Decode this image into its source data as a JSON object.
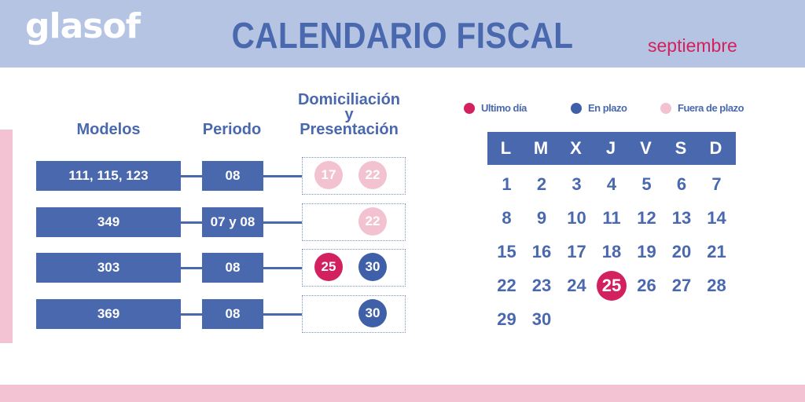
{
  "header": {
    "logo": "glasof",
    "title": "CALENDARIO FISCAL",
    "month": "septiembre"
  },
  "columns": {
    "modelos": "Modelos",
    "periodo": "Periodo",
    "domiciliacion": [
      "Domiciliación",
      "y",
      "Presentación"
    ]
  },
  "rows": [
    {
      "modelos": "111, 115, 123",
      "periodo": "08",
      "dates": [
        {
          "day": "17",
          "status": "fuera"
        },
        {
          "day": "22",
          "status": "fuera"
        }
      ]
    },
    {
      "modelos": "349",
      "periodo": "07 y 08",
      "dates": [
        {
          "day": "22",
          "status": "fuera"
        }
      ]
    },
    {
      "modelos": "303",
      "periodo": "08",
      "dates": [
        {
          "day": "25",
          "status": "ultimo"
        },
        {
          "day": "30",
          "status": "plazo"
        }
      ]
    },
    {
      "modelos": "369",
      "periodo": "08",
      "dates": [
        {
          "day": "30",
          "status": "plazo"
        }
      ]
    }
  ],
  "legend": [
    {
      "label": "Ultimo día",
      "color": "#d3215f"
    },
    {
      "label": "En plazo",
      "color": "#3f5fa8"
    },
    {
      "label": "Fuera de plazo",
      "color": "#f2c2d1"
    }
  ],
  "calendar": {
    "weekdays": [
      "L",
      "M",
      "X",
      "J",
      "V",
      "S",
      "D"
    ],
    "days": [
      "1",
      "2",
      "3",
      "4",
      "5",
      "6",
      "7",
      "8",
      "9",
      "10",
      "11",
      "12",
      "13",
      "14",
      "15",
      "16",
      "17",
      "18",
      "19",
      "20",
      "21",
      "22",
      "23",
      "24",
      "25",
      "26",
      "27",
      "28",
      "29",
      "30"
    ],
    "first_weekday_index": 0,
    "highlight": "25",
    "highlight_color": "#d3215f"
  },
  "colors": {
    "primary": "#4a68ad",
    "accent": "#d3215f",
    "pink": "#f2c2d1",
    "header_bg": "#b4c4e2"
  }
}
